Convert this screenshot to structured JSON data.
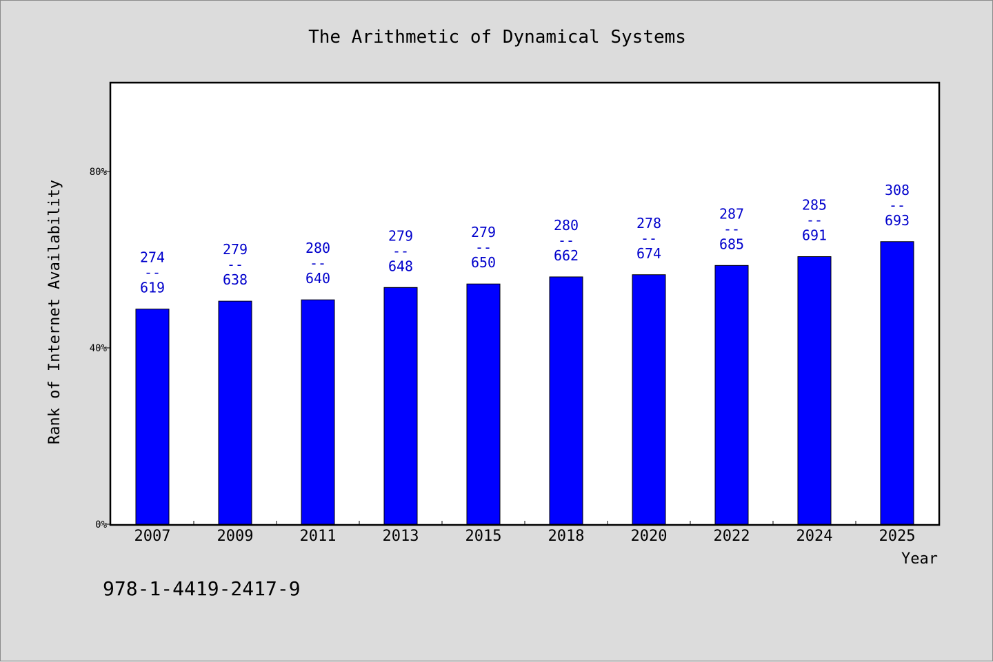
{
  "chart_data": {
    "type": "bar",
    "title": "The Arithmetic of Dynamical Systems",
    "xlabel": "Year",
    "ylabel": "Rank of Internet Availability",
    "categories": [
      "2007",
      "2009",
      "2011",
      "2013",
      "2015",
      "2018",
      "2020",
      "2022",
      "2024",
      "2025"
    ],
    "series": [
      {
        "values": [
          48.8,
          50.6,
          50.9,
          53.7,
          54.5,
          56.1,
          56.6,
          58.7,
          60.7,
          64.1
        ],
        "color": "#0000ff",
        "labels_top": [
          "274",
          "279",
          "280",
          "279",
          "279",
          "280",
          "278",
          "287",
          "285",
          "308"
        ],
        "labels_bottom": [
          "619",
          "638",
          "640",
          "648",
          "650",
          "662",
          "674",
          "685",
          "691",
          "693"
        ],
        "label_separator": "--"
      }
    ],
    "ylim": [
      0,
      100
    ],
    "yticks": [
      0,
      40,
      80
    ],
    "ytick_labels": [
      "0%",
      "40%",
      "80%"
    ],
    "grid": false
  },
  "footnote": "978-1-4419-2417-9",
  "colors": {
    "background": "#dcdcdc",
    "plot_area": "#ffffff",
    "bar": "#0000ff",
    "bar_label": "#0000cc"
  }
}
